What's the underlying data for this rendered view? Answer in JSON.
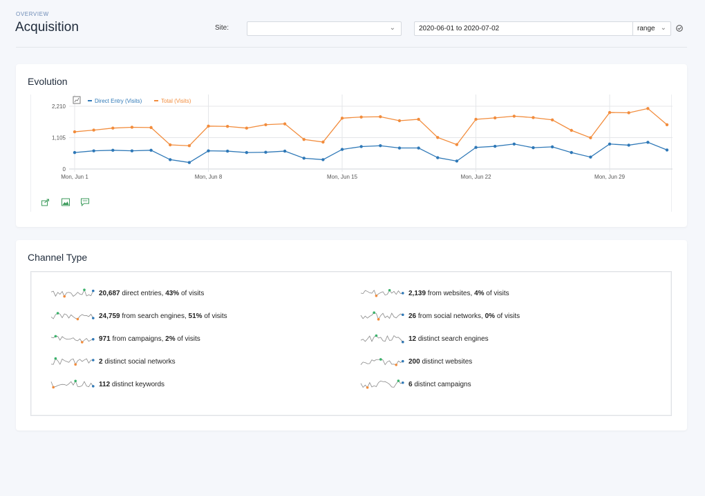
{
  "header": {
    "overview_label": "OVERVIEW",
    "title": "Acquisition",
    "site_label": "Site:",
    "site_value": "",
    "date_range": "2020-06-01 to 2020-07-02",
    "range_label": "range"
  },
  "evolution": {
    "title": "Evolution",
    "chart_data": {
      "type": "line",
      "series": [
        {
          "name": "Direct Entry (Visits)",
          "color": "#2e78b7",
          "values": [
            580,
            640,
            660,
            640,
            660,
            330,
            230,
            640,
            630,
            580,
            590,
            630,
            380,
            330,
            690,
            790,
            820,
            740,
            740,
            400,
            280,
            760,
            800,
            880,
            750,
            780,
            580,
            420,
            880,
            840,
            940,
            670
          ]
        },
        {
          "name": "Total (Visits)",
          "color": "#f28c3c",
          "values": [
            1310,
            1370,
            1440,
            1470,
            1460,
            850,
            820,
            1510,
            1500,
            1440,
            1560,
            1590,
            1040,
            950,
            1790,
            1830,
            1840,
            1700,
            1750,
            1110,
            860,
            1750,
            1800,
            1860,
            1810,
            1730,
            1360,
            1100,
            1990,
            1980,
            2130,
            1560
          ]
        }
      ],
      "x_tick_labels": [
        "Mon, Jun 1",
        "Mon, Jun 8",
        "Mon, Jun 15",
        "Mon, Jun 22",
        "Mon, Jun 29"
      ],
      "x_tick_indices": [
        0,
        7,
        14,
        21,
        28
      ],
      "y_tick_labels": [
        "0",
        "1,105",
        "2,210"
      ],
      "y_ticks": [
        0,
        1105,
        2210
      ],
      "ylim": [
        0,
        2210
      ],
      "legend": "top-left",
      "grid": true
    }
  },
  "channel": {
    "title": "Channel Type",
    "metrics": [
      {
        "bold1": "20,687",
        "mid": " direct entries, ",
        "bold2": "43%",
        "tail": " of visits"
      },
      {
        "bold1": "2,139",
        "mid": " from websites, ",
        "bold2": "4%",
        "tail": " of visits"
      },
      {
        "bold1": "24,759",
        "mid": " from search engines, ",
        "bold2": "51%",
        "tail": " of visits"
      },
      {
        "bold1": "26",
        "mid": " from social networks, ",
        "bold2": "0%",
        "tail": " of visits"
      },
      {
        "bold1": "971",
        "mid": " from campaigns, ",
        "bold2": "2%",
        "tail": " of visits"
      },
      {
        "bold1": "12",
        "mid": " distinct search engines",
        "bold2": "",
        "tail": ""
      },
      {
        "bold1": "2",
        "mid": " distinct social networks",
        "bold2": "",
        "tail": ""
      },
      {
        "bold1": "200",
        "mid": " distinct websites",
        "bold2": "",
        "tail": ""
      },
      {
        "bold1": "112",
        "mid": " distinct keywords",
        "bold2": "",
        "tail": ""
      },
      {
        "bold1": "6",
        "mid": " distinct campaigns",
        "bold2": "",
        "tail": ""
      }
    ]
  },
  "colors": {
    "accent_green": "#3a9a5a",
    "min_dot": "#f28c3c",
    "max_dot": "#3ab26b",
    "last_dot": "#2e78b7"
  },
  "icons": [
    "chevron-down-icon",
    "refresh-icon",
    "chart-type-icon",
    "export-icon",
    "image-icon",
    "annotation-icon"
  ]
}
